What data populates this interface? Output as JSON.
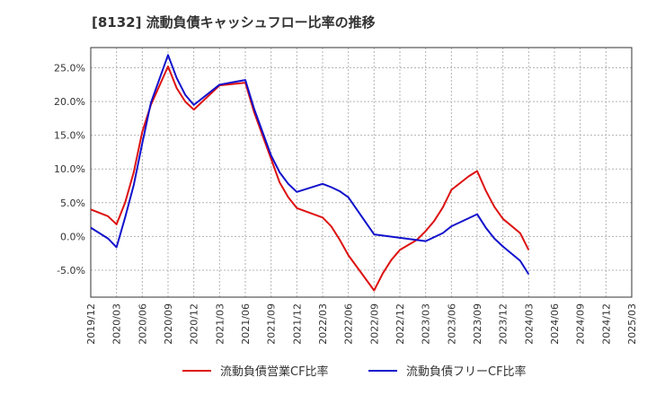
{
  "chart_data": {
    "type": "line",
    "title": "[8132]  流動負債キャッシュフロー比率の推移",
    "xlabel": "",
    "ylabel": "",
    "x_ticks": [
      "2019/12",
      "2020/03",
      "2020/06",
      "2020/09",
      "2020/12",
      "2021/03",
      "2021/06",
      "2021/09",
      "2021/12",
      "2022/03",
      "2022/06",
      "2022/09",
      "2022/12",
      "2023/03",
      "2023/06",
      "2023/09",
      "2023/12",
      "2024/03",
      "2024/06",
      "2024/09",
      "2024/12",
      "2025/03"
    ],
    "y_ticks": [
      "25.0%",
      "20.0%",
      "15.0%",
      "10.0%",
      "5.0%",
      "0.0%",
      "-5.0%"
    ],
    "y_tick_values": [
      25,
      20,
      15,
      10,
      5,
      0,
      -5
    ],
    "ylim": [
      -9,
      28
    ],
    "xlim": [
      "2019/12",
      "2025/03"
    ],
    "grid": true,
    "legend_position": "bottom",
    "series": [
      {
        "name": "流動負債営業CF比率",
        "color": "#dd1111",
        "points": [
          [
            "2019/12",
            4.0
          ],
          [
            "2020/02",
            3.0
          ],
          [
            "2020/03",
            1.8
          ],
          [
            "2020/04",
            5.0
          ],
          [
            "2020/05",
            9.5
          ],
          [
            "2020/06",
            15.5
          ],
          [
            "2020/07",
            19.5
          ],
          [
            "2020/09",
            25.2
          ],
          [
            "2020/10",
            22.0
          ],
          [
            "2020/11",
            20.0
          ],
          [
            "2020/12",
            18.8
          ],
          [
            "2021/03",
            22.4
          ],
          [
            "2021/06",
            22.8
          ],
          [
            "2021/07",
            18.5
          ],
          [
            "2021/08",
            15.0
          ],
          [
            "2021/09",
            11.5
          ],
          [
            "2021/10",
            8.0
          ],
          [
            "2021/11",
            5.8
          ],
          [
            "2021/12",
            4.2
          ],
          [
            "2022/03",
            2.8
          ],
          [
            "2022/04",
            1.5
          ],
          [
            "2022/05",
            -0.5
          ],
          [
            "2022/06",
            -2.8
          ],
          [
            "2022/09",
            -8.0
          ],
          [
            "2022/10",
            -5.5
          ],
          [
            "2022/11",
            -3.5
          ],
          [
            "2022/12",
            -2.0
          ],
          [
            "2023/02",
            -0.5
          ],
          [
            "2023/03",
            0.8
          ],
          [
            "2023/04",
            2.3
          ],
          [
            "2023/05",
            4.3
          ],
          [
            "2023/06",
            6.9
          ],
          [
            "2023/07",
            7.9
          ],
          [
            "2023/08",
            8.9
          ],
          [
            "2023/09",
            9.7
          ],
          [
            "2023/10",
            6.8
          ],
          [
            "2023/11",
            4.4
          ],
          [
            "2023/12",
            2.6
          ],
          [
            "2024/02",
            0.5
          ],
          [
            "2024/03",
            -2.0
          ]
        ]
      },
      {
        "name": "流動負債フリーCF比率",
        "color": "#1111cc",
        "points": [
          [
            "2019/12",
            1.3
          ],
          [
            "2020/02",
            -0.3
          ],
          [
            "2020/03",
            -1.6
          ],
          [
            "2020/04",
            2.8
          ],
          [
            "2020/05",
            7.6
          ],
          [
            "2020/06",
            13.8
          ],
          [
            "2020/07",
            19.8
          ],
          [
            "2020/09",
            26.9
          ],
          [
            "2020/10",
            23.5
          ],
          [
            "2020/11",
            21.0
          ],
          [
            "2020/12",
            19.5
          ],
          [
            "2021/03",
            22.5
          ],
          [
            "2021/06",
            23.2
          ],
          [
            "2021/07",
            19.0
          ],
          [
            "2021/08",
            15.5
          ],
          [
            "2021/09",
            12.0
          ],
          [
            "2021/10",
            9.5
          ],
          [
            "2021/11",
            7.8
          ],
          [
            "2021/12",
            6.6
          ],
          [
            "2022/03",
            7.8
          ],
          [
            "2022/04",
            7.3
          ],
          [
            "2022/05",
            6.7
          ],
          [
            "2022/06",
            5.8
          ],
          [
            "2022/09",
            0.3
          ],
          [
            "2022/12",
            -0.2
          ],
          [
            "2023/03",
            -0.7
          ],
          [
            "2023/05",
            0.5
          ],
          [
            "2023/06",
            1.5
          ],
          [
            "2023/09",
            3.3
          ],
          [
            "2023/10",
            1.3
          ],
          [
            "2023/11",
            -0.3
          ],
          [
            "2023/12",
            -1.5
          ],
          [
            "2024/02",
            -3.6
          ],
          [
            "2024/03",
            -5.6
          ]
        ]
      }
    ]
  }
}
